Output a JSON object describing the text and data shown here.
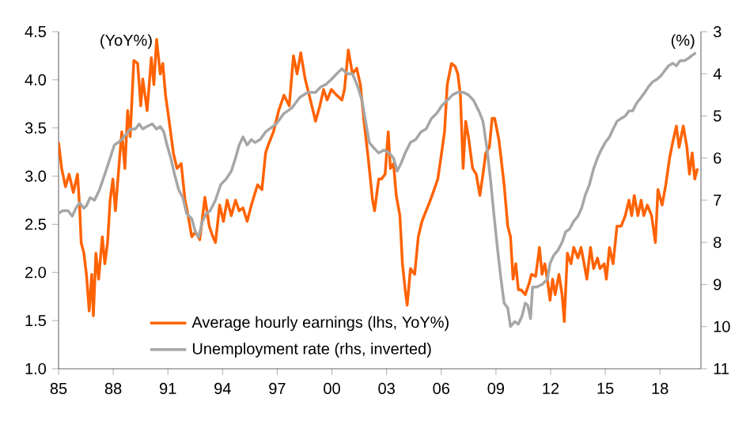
{
  "chart_data": {
    "type": "line",
    "ylabel": "(YoY%)",
    "y2label": "(%)",
    "xlim": [
      1985,
      2020.25
    ],
    "xticks": [
      {
        "value": 1985,
        "label": "85"
      },
      {
        "value": 1988,
        "label": "88"
      },
      {
        "value": 1991,
        "label": "91"
      },
      {
        "value": 1994,
        "label": "94"
      },
      {
        "value": 1997,
        "label": "97"
      },
      {
        "value": 2000,
        "label": "00"
      },
      {
        "value": 2003,
        "label": "03"
      },
      {
        "value": 2006,
        "label": "06"
      },
      {
        "value": 2009,
        "label": "09"
      },
      {
        "value": 2012,
        "label": "12"
      },
      {
        "value": 2015,
        "label": "15"
      },
      {
        "value": 2018,
        "label": "18"
      }
    ],
    "ylim": [
      1,
      4.5
    ],
    "yticks": [
      {
        "value": 1,
        "label": "1.0"
      },
      {
        "value": 1.5,
        "label": "1.5"
      },
      {
        "value": 2,
        "label": "2.0"
      },
      {
        "value": 2.5,
        "label": "2.5"
      },
      {
        "value": 3,
        "label": "3.0"
      },
      {
        "value": 3.5,
        "label": "3.5"
      },
      {
        "value": 4,
        "label": "4.0"
      },
      {
        "value": 4.5,
        "label": "4.5"
      }
    ],
    "y2lim": [
      11,
      3
    ],
    "y2ticks": [
      3,
      4,
      5,
      6,
      7,
      8,
      9,
      10,
      11
    ],
    "legend": "bottom",
    "series": [
      {
        "name": "Average hourly earnings (lhs, YoY%)",
        "color": "#ff6200",
        "x": [
          1985.0,
          1985.17,
          1985.38,
          1985.58,
          1985.81,
          1986.04,
          1986.16,
          1986.24,
          1986.39,
          1986.53,
          1986.68,
          1986.82,
          1986.91,
          1987.05,
          1987.2,
          1987.4,
          1987.54,
          1987.69,
          1987.83,
          1987.98,
          1988.12,
          1988.35,
          1988.47,
          1988.64,
          1988.79,
          1988.93,
          1989.13,
          1989.34,
          1989.51,
          1989.62,
          1989.86,
          1990.09,
          1990.23,
          1990.38,
          1990.58,
          1990.72,
          1990.87,
          1991.07,
          1991.3,
          1991.5,
          1991.73,
          1991.94,
          1992.11,
          1992.31,
          1992.51,
          1992.75,
          1993.03,
          1993.27,
          1993.47,
          1993.61,
          1993.84,
          1994.05,
          1994.25,
          1994.48,
          1994.71,
          1994.91,
          1995.12,
          1995.35,
          1995.58,
          1995.92,
          1996.16,
          1996.36,
          1996.5,
          1996.79,
          1997.08,
          1997.37,
          1997.66,
          1997.89,
          1998.09,
          1998.29,
          1998.53,
          1998.82,
          1999.1,
          1999.34,
          1999.54,
          1999.74,
          1999.97,
          2000.26,
          2000.55,
          2000.69,
          2000.9,
          2001.13,
          2001.36,
          2001.56,
          2001.76,
          2001.99,
          2002.23,
          2002.34,
          2002.57,
          2002.72,
          2002.92,
          2003.09,
          2003.21,
          2003.38,
          2003.53,
          2003.73,
          2003.87,
          2004.02,
          2004.13,
          2004.31,
          2004.54,
          2004.74,
          2004.94,
          2005.17,
          2005.4,
          2005.61,
          2005.81,
          2005.98,
          2006.18,
          2006.33,
          2006.56,
          2006.76,
          2006.91,
          2007.05,
          2007.2,
          2007.34,
          2007.49,
          2007.72,
          2007.92,
          2008.12,
          2008.29,
          2008.44,
          2008.64,
          2008.79,
          2008.93,
          2009.16,
          2009.28,
          2009.45,
          2009.65,
          2009.8,
          2009.94,
          2010.09,
          2010.23,
          2010.38,
          2010.61,
          2010.81,
          2010.95,
          2011.18,
          2011.39,
          2011.53,
          2011.68,
          2011.82,
          2011.97,
          2012.11,
          2012.25,
          2012.46,
          2012.63,
          2012.75,
          2012.92,
          2013.12,
          2013.27,
          2013.5,
          2013.67,
          2013.84,
          2013.99,
          2014.19,
          2014.36,
          2014.57,
          2014.71,
          2014.94,
          2015.06,
          2015.23,
          2015.43,
          2015.64,
          2015.87,
          2016.1,
          2016.3,
          2016.45,
          2016.59,
          2016.79,
          2016.97,
          2017.11,
          2017.31,
          2017.54,
          2017.75,
          2017.89,
          2018.12,
          2018.32,
          2018.53,
          2018.7,
          2018.9,
          2019.05,
          2019.28,
          2019.48,
          2019.62,
          2019.77,
          2019.91,
          2020.06
        ],
        "values": [
          3.35,
          3.08,
          2.89,
          3.02,
          2.83,
          3.02,
          2.67,
          2.31,
          2.2,
          1.98,
          1.6,
          1.98,
          1.55,
          2.2,
          1.93,
          2.37,
          2.09,
          2.31,
          2.75,
          2.97,
          2.64,
          3.19,
          3.46,
          3.08,
          3.68,
          3.41,
          4.2,
          4.17,
          3.73,
          4.01,
          3.68,
          4.23,
          3.95,
          4.42,
          4.06,
          4.17,
          3.84,
          3.57,
          3.24,
          3.08,
          3.13,
          2.75,
          2.59,
          2.37,
          2.42,
          2.34,
          2.78,
          2.48,
          2.37,
          2.31,
          2.7,
          2.53,
          2.75,
          2.59,
          2.75,
          2.64,
          2.67,
          2.53,
          2.7,
          2.91,
          2.86,
          3.24,
          3.32,
          3.46,
          3.68,
          3.84,
          3.73,
          4.25,
          4.06,
          4.28,
          4.01,
          3.79,
          3.57,
          3.73,
          3.9,
          3.79,
          3.9,
          3.84,
          3.79,
          3.9,
          4.31,
          4.06,
          4.12,
          3.95,
          3.57,
          3.19,
          2.75,
          2.64,
          2.97,
          2.97,
          3.02,
          3.46,
          3.08,
          3.13,
          2.8,
          2.59,
          2.09,
          1.82,
          1.66,
          2.04,
          1.98,
          2.37,
          2.53,
          2.64,
          2.75,
          2.86,
          2.97,
          3.19,
          3.46,
          3.95,
          4.17,
          4.14,
          4.06,
          3.84,
          3.08,
          3.57,
          3.41,
          3.08,
          3.02,
          2.8,
          3.02,
          3.24,
          3.3,
          3.6,
          3.6,
          3.38,
          3.19,
          2.91,
          2.48,
          2.37,
          1.93,
          2.09,
          1.82,
          1.82,
          1.77,
          1.88,
          1.98,
          1.96,
          2.26,
          1.98,
          2.09,
          1.93,
          1.71,
          1.93,
          1.77,
          1.98,
          1.77,
          1.49,
          2.2,
          2.09,
          2.26,
          2.15,
          2.26,
          2.09,
          1.93,
          2.26,
          2.04,
          2.15,
          2.04,
          2.09,
          1.93,
          2.26,
          2.09,
          2.48,
          2.48,
          2.59,
          2.75,
          2.59,
          2.8,
          2.59,
          2.75,
          2.59,
          2.7,
          2.59,
          2.31,
          2.86,
          2.7,
          2.91,
          3.19,
          3.35,
          3.52,
          3.3,
          3.52,
          3.3,
          3.02,
          3.24,
          2.97,
          3.08
        ]
      },
      {
        "name": "Unemployment rate (rhs, inverted)",
        "color": "#a6a6a6",
        "axis": "y2",
        "x": [
          1985.0,
          1985.23,
          1985.52,
          1985.75,
          1985.95,
          1986.16,
          1986.39,
          1986.53,
          1986.73,
          1986.97,
          1987.25,
          1987.54,
          1987.83,
          1988.06,
          1988.27,
          1988.47,
          1988.7,
          1988.93,
          1989.22,
          1989.42,
          1989.62,
          1989.86,
          1990.14,
          1990.38,
          1990.58,
          1990.78,
          1990.95,
          1991.16,
          1991.36,
          1991.59,
          1991.82,
          1992.02,
          1992.31,
          1992.51,
          1992.69,
          1992.89,
          1993.12,
          1993.32,
          1993.61,
          1993.9,
          1994.19,
          1994.48,
          1994.71,
          1994.91,
          1995.12,
          1995.35,
          1995.58,
          1995.78,
          1996.07,
          1996.36,
          1996.94,
          1997.37,
          1997.8,
          1998.24,
          1998.67,
          1999.1,
          1999.39,
          1999.68,
          1999.97,
          2000.26,
          2000.55,
          2000.84,
          2001.13,
          2001.42,
          2001.65,
          2001.85,
          2002.05,
          2002.28,
          2002.57,
          2002.86,
          2003.15,
          2003.38,
          2003.58,
          2003.79,
          2004.02,
          2004.31,
          2004.6,
          2004.88,
          2005.17,
          2005.46,
          2005.75,
          2006.04,
          2006.33,
          2006.62,
          2006.91,
          2007.2,
          2007.49,
          2007.77,
          2008.06,
          2008.29,
          2008.5,
          2008.7,
          2008.87,
          2009.08,
          2009.28,
          2009.45,
          2009.65,
          2009.8,
          2010.03,
          2010.23,
          2010.43,
          2010.61,
          2010.75,
          2010.9,
          2011.01,
          2011.24,
          2011.53,
          2011.82,
          2011.97,
          2012.17,
          2012.4,
          2012.63,
          2012.83,
          2013.03,
          2013.27,
          2013.5,
          2013.7,
          2013.9,
          2014.13,
          2014.36,
          2014.57,
          2014.77,
          2015.0,
          2015.23,
          2015.43,
          2015.64,
          2015.87,
          2016.1,
          2016.3,
          2016.5,
          2016.73,
          2016.97,
          2017.17,
          2017.37,
          2017.6,
          2017.83,
          2018.03,
          2018.24,
          2018.47,
          2018.7,
          2018.9,
          2019.1,
          2019.34,
          2019.57,
          2019.77,
          2019.97
        ],
        "values": [
          7.31,
          7.25,
          7.25,
          7.38,
          7.19,
          7.06,
          7.19,
          7.13,
          6.94,
          7.0,
          6.75,
          6.38,
          6.0,
          5.69,
          5.63,
          5.56,
          5.44,
          5.31,
          5.31,
          5.19,
          5.31,
          5.25,
          5.19,
          5.31,
          5.25,
          5.38,
          5.69,
          6.0,
          6.38,
          6.75,
          6.94,
          7.31,
          7.44,
          7.75,
          7.88,
          7.5,
          7.31,
          7.25,
          7.0,
          6.63,
          6.5,
          6.31,
          6.0,
          5.69,
          5.5,
          5.69,
          5.56,
          5.63,
          5.56,
          5.38,
          5.19,
          4.94,
          4.81,
          4.56,
          4.44,
          4.44,
          4.31,
          4.25,
          4.13,
          4.0,
          3.88,
          4.0,
          4.0,
          4.31,
          4.63,
          5.13,
          5.63,
          5.75,
          5.88,
          5.81,
          5.88,
          6.0,
          6.31,
          6.13,
          5.88,
          5.63,
          5.56,
          5.38,
          5.31,
          5.06,
          4.94,
          4.75,
          4.63,
          4.5,
          4.44,
          4.44,
          4.5,
          4.63,
          4.88,
          5.13,
          5.75,
          6.5,
          7.25,
          8.13,
          8.88,
          9.44,
          9.56,
          10.0,
          9.88,
          9.94,
          9.75,
          9.44,
          9.5,
          9.81,
          9.06,
          9.06,
          9.0,
          8.88,
          8.5,
          8.31,
          8.19,
          8.0,
          7.75,
          7.69,
          7.5,
          7.38,
          7.19,
          6.88,
          6.63,
          6.25,
          6.0,
          5.81,
          5.63,
          5.5,
          5.31,
          5.13,
          5.06,
          5.0,
          4.88,
          4.88,
          4.69,
          4.56,
          4.44,
          4.31,
          4.19,
          4.13,
          4.06,
          3.94,
          3.81,
          3.75,
          3.81,
          3.69,
          3.69,
          3.63,
          3.56,
          3.5
        ]
      }
    ]
  }
}
